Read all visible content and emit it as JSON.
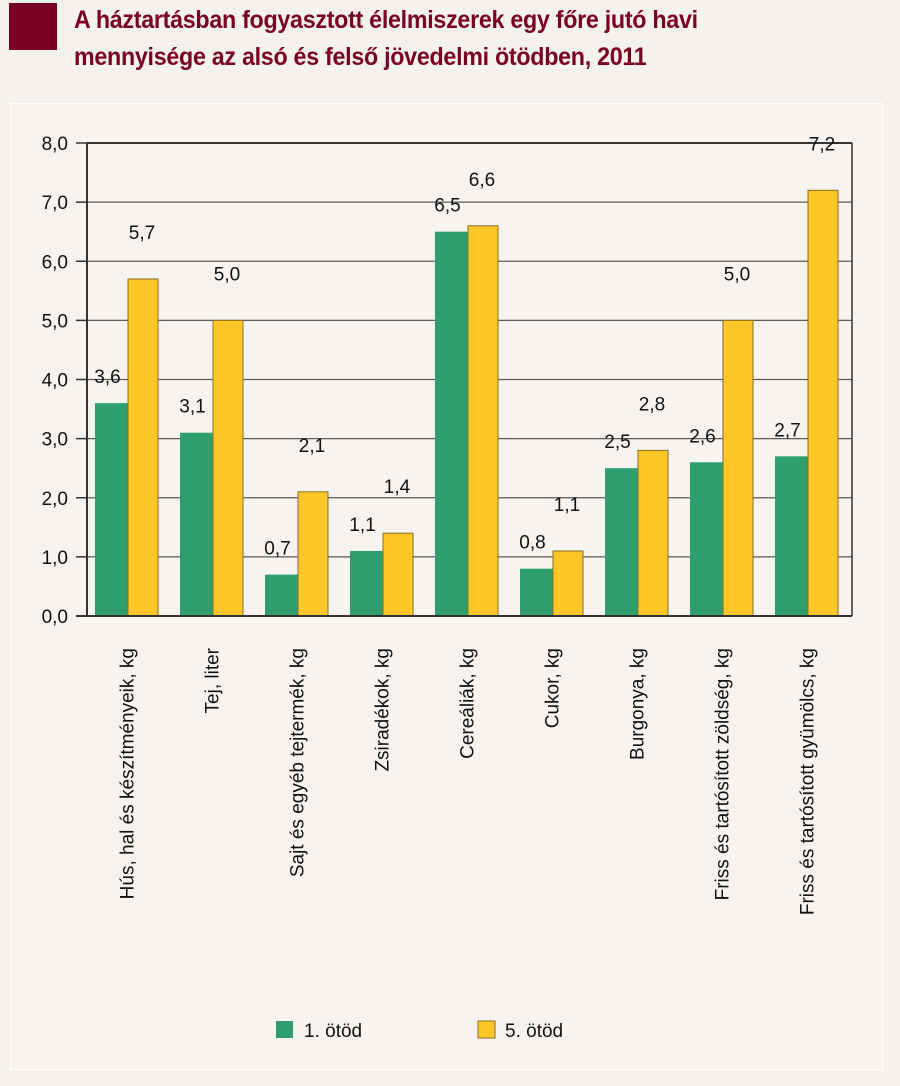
{
  "title": {
    "line1": "A háztartásban fogyasztott élelmiszerek egy főre jutó havi",
    "line2": "mennyisége az alsó és felső jövedelmi ötödben, 2011"
  },
  "colors": {
    "title": "#7a0026",
    "series1": "#2e9e6e",
    "series2": "#ffc62a",
    "series2_outline": "#8a6d1a",
    "axis": "#333333",
    "grid": "#5a5a5a"
  },
  "chart_data": {
    "type": "bar",
    "title": "A háztartásban fogyasztott élelmiszerek egy főre jutó havi mennyisége az alsó és felső jövedelmi ötödben, 2011",
    "xlabel": "",
    "ylabel": "",
    "ylim": [
      0,
      8
    ],
    "yticks": [
      0,
      1,
      2,
      3,
      4,
      5,
      6,
      7,
      8
    ],
    "ytick_labels": [
      "0,0",
      "1,0",
      "2,0",
      "3,0",
      "4,0",
      "5,0",
      "6,0",
      "7,0",
      "8,0"
    ],
    "grid": true,
    "legend_position": "bottom",
    "categories": [
      "Hús, hal és készítményeik, kg",
      "Tej, liter",
      "Sajt és egyéb tejtermék, kg",
      "Zsiradékok, kg",
      "Cereáliák, kg",
      "Cukor, kg",
      "Burgonya, kg",
      "Friss és tartósított zöldség, kg",
      "Friss és tartósított gyümölcs, kg"
    ],
    "series": [
      {
        "name": "1. ötöd",
        "values": [
          3.6,
          3.1,
          0.7,
          1.1,
          6.5,
          0.8,
          2.5,
          2.6,
          2.7
        ],
        "labels": [
          "3,6",
          "3,1",
          "0,7",
          "1,1",
          "6,5",
          "0,8",
          "2,5",
          "2,6",
          "2,7"
        ]
      },
      {
        "name": "5. ötöd",
        "values": [
          5.7,
          5.0,
          2.1,
          1.4,
          6.6,
          1.1,
          2.8,
          5.0,
          7.2
        ],
        "labels": [
          "5,7",
          "5,0",
          "2,1",
          "1,4",
          "6,6",
          "1,1",
          "2,8",
          "5,0",
          "7,2"
        ]
      }
    ]
  }
}
